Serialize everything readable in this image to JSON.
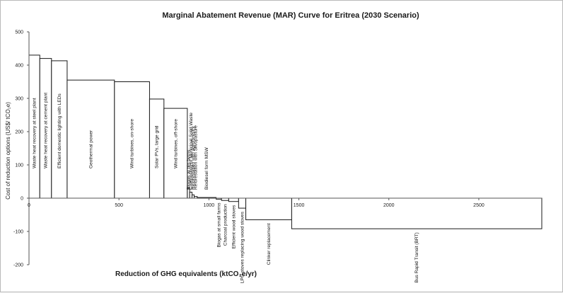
{
  "chart_data": {
    "type": "bar",
    "title": "Marginal Abatement Revenue (MAR) Curve for Eritrea (2030 Scenario)",
    "xlabel": "Reduction of GHG equivalents (ktCO₂e/yr)",
    "ylabel": "Cost of reduction options (US$/ tCO₂e)",
    "xlim": [
      0,
      2850
    ],
    "ylim": [
      -200,
      500
    ],
    "xticks": [
      0,
      500,
      1000,
      1500,
      2000,
      2500
    ],
    "yticks": [
      -200,
      -100,
      0,
      100,
      200,
      300,
      400,
      500
    ],
    "grid": false,
    "bars": [
      {
        "label": "Waste heat recovery at steel plant",
        "x_start": 0,
        "x_end": 60,
        "value": 430
      },
      {
        "label": "Waste heat recovery at cement plant",
        "x_start": 60,
        "x_end": 125,
        "value": 420
      },
      {
        "label": "Efficient domestic lighting with LEDs",
        "x_start": 125,
        "x_end": 212,
        "value": 413
      },
      {
        "label": "Geothermal power",
        "x_start": 212,
        "x_end": 475,
        "value": 355
      },
      {
        "label": "Wind turbines, on-shore",
        "x_start": 475,
        "x_end": 670,
        "value": 350
      },
      {
        "label": "Solar PVs, large grid",
        "x_start": 670,
        "x_end": 750,
        "value": 298
      },
      {
        "label": "Wind turbines, off-shore",
        "x_start": 750,
        "x_end": 880,
        "value": 270
      },
      {
        "label": "Biogas at big farms",
        "x_start": 880,
        "x_end": 893,
        "value": 30
      },
      {
        "label": "Composting of Municipal Solid Waste",
        "x_start": 893,
        "x_end": 906,
        "value": 18
      },
      {
        "label": "Reforestation with agroforestry",
        "x_start": 906,
        "x_end": 918,
        "value": 10
      },
      {
        "label": "Reforestation with Silvopasture",
        "x_start": 918,
        "x_end": 935,
        "value": 5
      },
      {
        "label": "Biodiesel form MSW",
        "x_start": 935,
        "x_end": 1040,
        "value": 2
      },
      {
        "label": "Biogas at small farms",
        "x_start": 1040,
        "x_end": 1070,
        "value": -3
      },
      {
        "label": "Charcoal production",
        "x_start": 1070,
        "x_end": 1110,
        "value": -7
      },
      {
        "label": "Efficient wood stoves",
        "x_start": 1110,
        "x_end": 1165,
        "value": -10
      },
      {
        "label": "LPG stoves replacing wood stoves",
        "x_start": 1165,
        "x_end": 1205,
        "value": -30
      },
      {
        "label": "Clinker replacement",
        "x_start": 1205,
        "x_end": 1460,
        "value": -65
      },
      {
        "label": "Bus Rapid Transit (BRT)",
        "x_start": 1460,
        "x_end": 2850,
        "value": -92
      }
    ]
  }
}
